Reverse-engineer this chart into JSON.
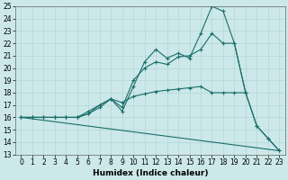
{
  "xlabel": "Humidex (Indice chaleur)",
  "bg_color": "#cce8e8",
  "line_color": "#1a6e6a",
  "grid_color": "#aad4d4",
  "ylim": [
    13,
    25
  ],
  "xlim": [
    -0.5,
    23.5
  ],
  "yticks": [
    13,
    14,
    15,
    16,
    17,
    18,
    19,
    20,
    21,
    22,
    23,
    24,
    25
  ],
  "xticks": [
    0,
    1,
    2,
    3,
    4,
    5,
    6,
    7,
    8,
    9,
    10,
    11,
    12,
    13,
    14,
    15,
    16,
    17,
    18,
    19,
    20,
    21,
    22,
    23
  ],
  "line1_x": [
    0,
    1,
    2,
    3,
    4,
    5,
    6,
    7,
    8,
    9,
    10,
    11,
    12,
    13,
    14,
    15,
    16,
    17,
    18,
    19,
    20,
    21,
    22,
    23
  ],
  "line1_y": [
    16,
    16,
    16,
    16,
    16,
    16,
    16.5,
    17,
    17.5,
    16.5,
    18.5,
    20.5,
    21.5,
    20.8,
    21.2,
    20.8,
    22.8,
    25.0,
    24.6,
    22.0,
    18.0,
    15.3,
    14.3,
    13.3
  ],
  "line2_x": [
    0,
    1,
    2,
    3,
    4,
    5,
    6,
    7,
    8,
    9,
    10,
    11,
    12,
    13,
    14,
    15,
    16,
    17,
    18,
    19,
    20,
    21,
    22,
    23
  ],
  "line2_y": [
    16,
    16,
    16,
    16,
    16,
    16,
    16.3,
    16.8,
    17.5,
    16.8,
    19.0,
    20.0,
    20.5,
    20.3,
    20.9,
    21.0,
    21.5,
    22.8,
    22.0,
    22.0,
    18.0,
    15.3,
    14.3,
    13.3
  ],
  "line3_x": [
    0,
    1,
    2,
    3,
    4,
    5,
    6,
    7,
    8,
    9,
    10,
    11,
    12,
    13,
    14,
    15,
    16,
    17,
    18,
    19,
    20
  ],
  "line3_y": [
    16,
    16,
    16,
    16,
    16,
    16,
    16.3,
    17.0,
    17.5,
    17.2,
    17.7,
    17.9,
    18.1,
    18.2,
    18.3,
    18.4,
    18.5,
    18.0,
    18.0,
    18.0,
    18.0
  ],
  "line4_x": [
    0,
    23
  ],
  "line4_y": [
    16,
    13.3
  ],
  "xlabel_fontsize": 6.5,
  "tick_fontsize": 5.5
}
